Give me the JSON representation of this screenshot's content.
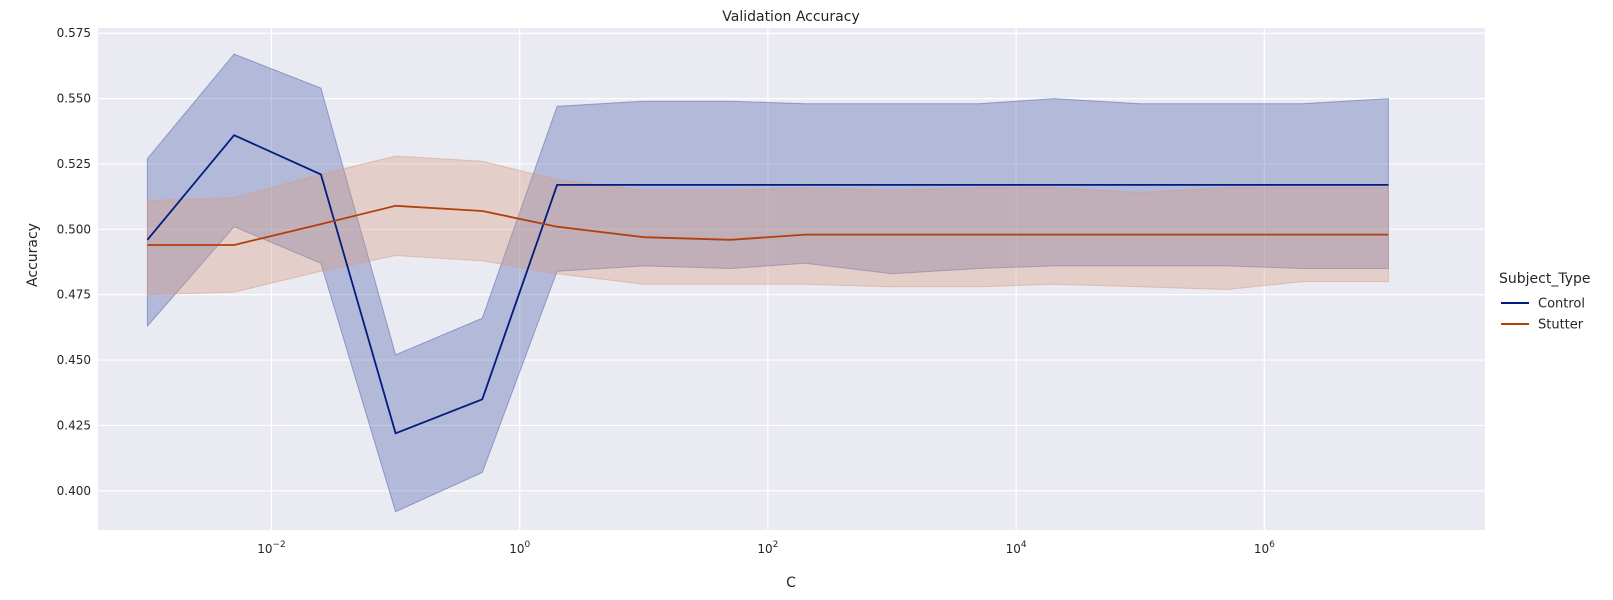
{
  "chart_data": {
    "type": "line",
    "title": "Validation Accuracy",
    "xlabel": "C",
    "ylabel": "Accuracy",
    "xscale": "log",
    "xlim": [
      0.0004,
      60000000
    ],
    "ylim": [
      0.385,
      0.577
    ],
    "x_ticks": [
      {
        "value": 0.01,
        "base": "10",
        "exp": "−2"
      },
      {
        "value": 1,
        "base": "10",
        "exp": "0"
      },
      {
        "value": 100,
        "base": "10",
        "exp": "2"
      },
      {
        "value": 10000,
        "base": "10",
        "exp": "4"
      },
      {
        "value": 1000000,
        "base": "10",
        "exp": "6"
      }
    ],
    "y_ticks": [
      "0.400",
      "0.425",
      "0.450",
      "0.475",
      "0.500",
      "0.525",
      "0.550",
      "0.575"
    ],
    "grid": true,
    "legend_title": "Subject_Type",
    "legend_position": "right",
    "x": [
      0.001,
      0.005,
      0.025,
      0.1,
      0.5,
      2,
      10,
      50,
      200,
      1000,
      5000,
      20000,
      100000,
      500000,
      2000000,
      10000000
    ],
    "series": [
      {
        "name": "Control",
        "color": "#001c7f",
        "band_color": "#4c5faa",
        "values": [
          0.496,
          0.536,
          0.521,
          0.422,
          0.435,
          0.517,
          0.517,
          0.517,
          0.517,
          0.517,
          0.517,
          0.517,
          0.517,
          0.517,
          0.517,
          0.517
        ],
        "lower": [
          0.463,
          0.501,
          0.487,
          0.392,
          0.407,
          0.484,
          0.486,
          0.485,
          0.487,
          0.483,
          0.485,
          0.486,
          0.486,
          0.486,
          0.485,
          0.485
        ],
        "upper": [
          0.527,
          0.567,
          0.554,
          0.452,
          0.466,
          0.547,
          0.549,
          0.549,
          0.548,
          0.548,
          0.548,
          0.55,
          0.548,
          0.548,
          0.548,
          0.55
        ]
      },
      {
        "name": "Stutter",
        "color": "#b1400d",
        "band_color": "#d99a7e",
        "values": [
          0.494,
          0.494,
          0.502,
          0.509,
          0.507,
          0.501,
          0.497,
          0.496,
          0.498,
          0.498,
          0.498,
          0.498,
          0.498,
          0.498,
          0.498,
          0.498
        ],
        "lower": [
          0.475,
          0.476,
          0.484,
          0.49,
          0.488,
          0.483,
          0.479,
          0.479,
          0.479,
          0.478,
          0.478,
          0.479,
          0.478,
          0.477,
          0.48,
          0.48
        ],
        "upper": [
          0.511,
          0.512,
          0.521,
          0.528,
          0.526,
          0.519,
          0.515,
          0.515,
          0.516,
          0.515,
          0.516,
          0.516,
          0.514,
          0.516,
          0.516,
          0.516
        ]
      }
    ]
  }
}
